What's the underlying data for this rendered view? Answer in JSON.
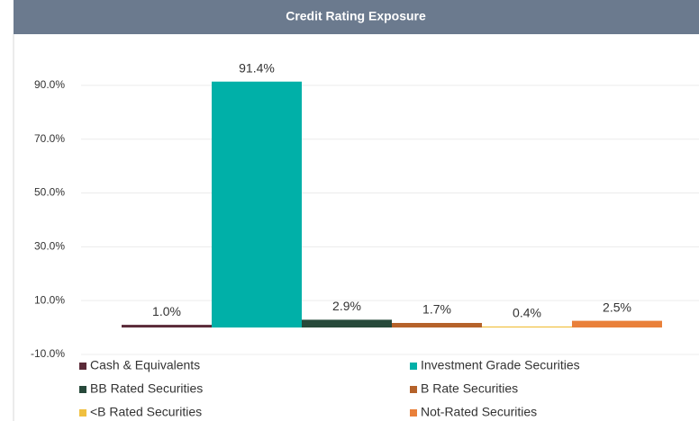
{
  "chart_data": {
    "type": "bar",
    "title": "Credit Rating Exposure",
    "categories": [
      "Cash & Equivalents",
      "Investment Grade Securities",
      "BB Rated Securities",
      "B Rate Securities",
      "<B Rated Securities",
      "Not-Rated Securities"
    ],
    "values": [
      1.0,
      91.4,
      2.9,
      1.7,
      0.4,
      2.5
    ],
    "value_labels": [
      "1.0%",
      "91.4%",
      "2.9%",
      "1.7%",
      "0.4%",
      "2.5%"
    ],
    "colors": [
      "#5a2a38",
      "#00b0a8",
      "#27493a",
      "#b5622a",
      "#f0c040",
      "#e9803a"
    ],
    "ylim": [
      -10,
      100
    ],
    "yticks": [
      {
        "value": -10,
        "label": "-10.0%"
      },
      {
        "value": 10,
        "label": "10.0%"
      },
      {
        "value": 30,
        "label": "30.0%"
      },
      {
        "value": 50,
        "label": "50.0%"
      },
      {
        "value": 70,
        "label": "70.0%"
      },
      {
        "value": 90,
        "label": "90.0%"
      }
    ],
    "grid": true
  }
}
